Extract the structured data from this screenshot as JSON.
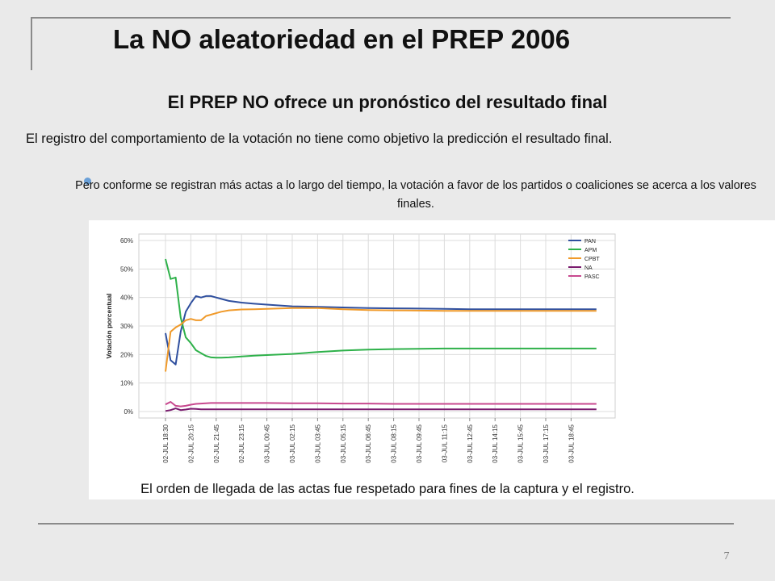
{
  "slide": {
    "title": "La NO aleatoriedad en el PREP 2006",
    "subtitle": "El PREP NO ofrece un pronóstico del resultado final",
    "paragraph": "El registro del comportamiento de la votación no tiene como objetivo la predicción el resultado final.",
    "bullet": "Pero conforme se registran más actas a lo largo del tiempo, la votación a favor de los partidos o coaliciones se acerca a los valores finales.",
    "caption": "El orden de llegada de las actas fue respetado para fines de la captura y el registro.",
    "page_number": "7"
  },
  "colors": {
    "PAN": "#2f4f9e",
    "APM": "#2eb14a",
    "CPBT": "#f09a2a",
    "NA": "#7a1b6e",
    "PASC": "#c8498f",
    "bullet": "#6aa0d8"
  },
  "chart_data": {
    "type": "line",
    "ylabel": "Votación porcentual",
    "xlabel": "",
    "ylim": [
      0,
      60
    ],
    "yticks": [
      "0%",
      "10%",
      "20%",
      "30%",
      "40%",
      "50%",
      "60%"
    ],
    "grid": true,
    "legend": "top-right",
    "x_tick_labels": [
      "02-JUL 18:30",
      "02-JUL 20:15",
      "02-JUL 21:45",
      "02-JUL 23:15",
      "03-JUL 00:45",
      "03-JUL 02:15",
      "03-JUL 03:45",
      "03-JUL 05:15",
      "03-JUL 06:45",
      "03-JUL 08:15",
      "03-JUL 09:45",
      "03-JUL 11:15",
      "03-JUL 12:45",
      "03-JUL 14:15",
      "03-JUL 15:45",
      "03-JUL 17:15",
      "03-JUL 18:45"
    ],
    "x": [
      0,
      0.2,
      0.4,
      0.6,
      0.8,
      1.0,
      1.2,
      1.4,
      1.6,
      1.8,
      2.0,
      2.2,
      2.5,
      3,
      3.5,
      4,
      5,
      6,
      7,
      8,
      9,
      10,
      11,
      12,
      13,
      14,
      15,
      16,
      17
    ],
    "series": [
      {
        "name": "PAN",
        "values": [
          27.5,
          18,
          16.5,
          28,
          35,
          38,
          40.5,
          40,
          40.5,
          40.5,
          40,
          39.5,
          38.8,
          38.2,
          37.8,
          37.5,
          36.9,
          36.7,
          36.5,
          36.3,
          36.2,
          36.1,
          36,
          35.9,
          35.9,
          35.9,
          35.9,
          35.9,
          35.9
        ]
      },
      {
        "name": "APM",
        "values": [
          53.5,
          46.5,
          47,
          33,
          26,
          24,
          21.5,
          20.5,
          19.5,
          19,
          18.9,
          18.9,
          19,
          19.3,
          19.6,
          19.8,
          20.2,
          20.9,
          21.4,
          21.7,
          21.9,
          22,
          22.1,
          22.1,
          22.1,
          22.1,
          22.1,
          22.1,
          22.1
        ]
      },
      {
        "name": "CPBT",
        "values": [
          14,
          28,
          29.5,
          30.5,
          32,
          32.5,
          32,
          32,
          33.5,
          34,
          34.5,
          35,
          35.5,
          35.8,
          35.9,
          36,
          36.3,
          36.3,
          35.9,
          35.6,
          35.5,
          35.4,
          35.3,
          35.3,
          35.3,
          35.3,
          35.3,
          35.3,
          35.3
        ]
      },
      {
        "name": "NA",
        "values": [
          0.2,
          0.5,
          1.1,
          0.5,
          0.7,
          1.0,
          0.9,
          0.8,
          0.8,
          0.8,
          0.8,
          0.8,
          0.8,
          0.8,
          0.8,
          0.8,
          0.8,
          0.8,
          0.8,
          0.8,
          0.8,
          0.8,
          0.8,
          0.8,
          0.8,
          0.8,
          0.8,
          0.8,
          0.8
        ]
      },
      {
        "name": "PASC",
        "values": [
          2.5,
          3.4,
          2.0,
          1.8,
          2.0,
          2.4,
          2.7,
          2.8,
          2.9,
          3.0,
          3.0,
          3.0,
          3.0,
          3.0,
          3.0,
          3.0,
          2.9,
          2.9,
          2.8,
          2.8,
          2.7,
          2.7,
          2.7,
          2.7,
          2.7,
          2.7,
          2.7,
          2.7,
          2.7
        ]
      }
    ]
  }
}
